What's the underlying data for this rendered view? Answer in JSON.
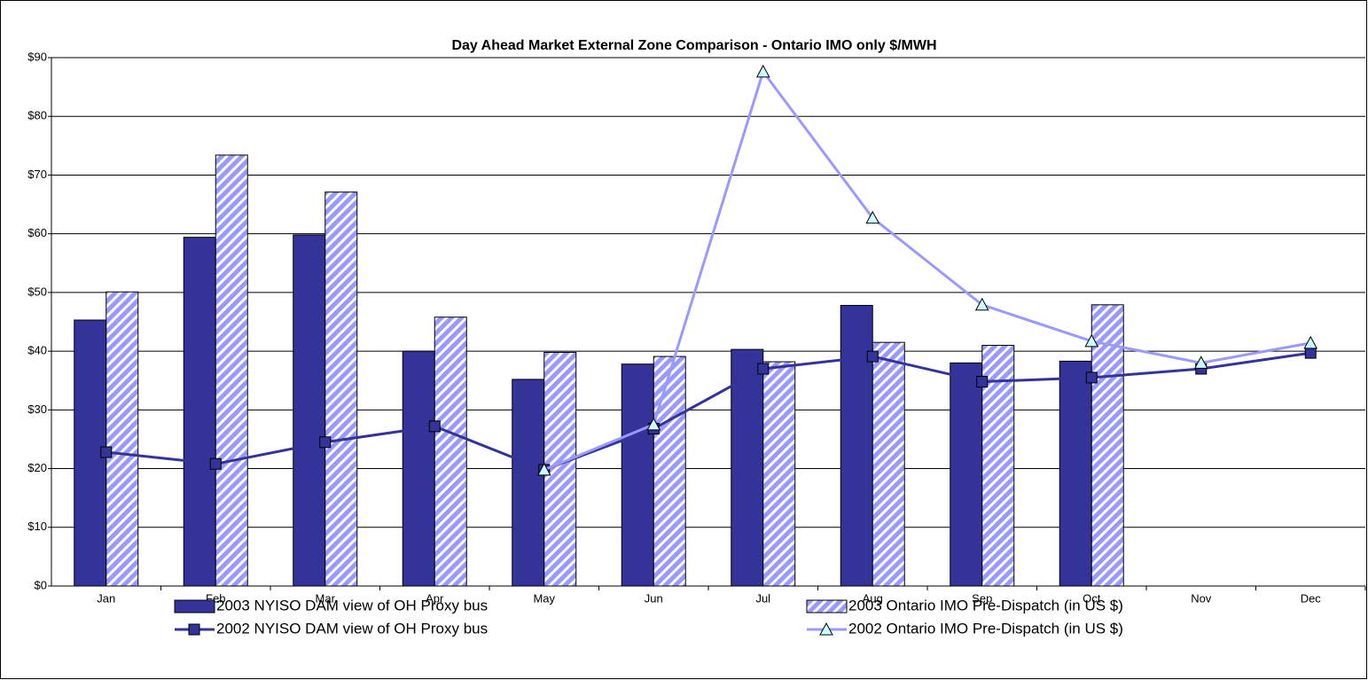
{
  "chart_data": {
    "type": "bar",
    "title": "Day Ahead Market External Zone Comparison - Ontario IMO only $/MWH",
    "categories": [
      "Jan",
      "Feb",
      "Mar",
      "Apr",
      "May",
      "Jun",
      "Jul",
      "Aug",
      "Sep",
      "Oct",
      "Nov",
      "Dec"
    ],
    "series": [
      {
        "name": "2003 NYISO DAM view of OH Proxy bus",
        "type": "bar",
        "color": "#333399",
        "values": [
          45.3,
          59.4,
          59.8,
          40.0,
          35.2,
          37.8,
          40.3,
          47.8,
          38.0,
          38.3,
          null,
          null
        ]
      },
      {
        "name": "2003 Ontario IMO Pre-Dispatch (in US $)",
        "type": "bar",
        "color": "#9999ff",
        "pattern": "hatch",
        "values": [
          50.1,
          73.4,
          67.1,
          45.8,
          39.8,
          39.1,
          38.2,
          41.5,
          41.0,
          47.9,
          null,
          null
        ]
      },
      {
        "name": "2002 NYISO DAM view of OH Proxy bus",
        "type": "line",
        "color": "#333399",
        "marker": "square",
        "marker_color": "#333399",
        "values": [
          22.8,
          20.8,
          24.5,
          27.2,
          19.8,
          26.8,
          37.0,
          39.1,
          34.8,
          35.5,
          37.0,
          39.7
        ]
      },
      {
        "name": "2002 Ontario IMO Pre-Dispatch (in US $)",
        "type": "line",
        "color": "#9999ff",
        "marker": "triangle",
        "marker_color": "#ccffff",
        "values": [
          null,
          null,
          null,
          null,
          19.8,
          27.5,
          87.6,
          62.7,
          47.9,
          41.7,
          38.0,
          41.4
        ]
      }
    ],
    "ylim": [
      0,
      90
    ],
    "yticks": [
      {
        "value": 0,
        "label": "$0"
      },
      {
        "value": 10,
        "label": "$10"
      },
      {
        "value": 20,
        "label": "$20"
      },
      {
        "value": 30,
        "label": "$30"
      },
      {
        "value": 40,
        "label": "$40"
      },
      {
        "value": 50,
        "label": "$50"
      },
      {
        "value": 60,
        "label": "$60"
      },
      {
        "value": 70,
        "label": "$70"
      },
      {
        "value": 80,
        "label": "$80"
      },
      {
        "value": 90,
        "label": "$90"
      }
    ],
    "grid": true
  }
}
